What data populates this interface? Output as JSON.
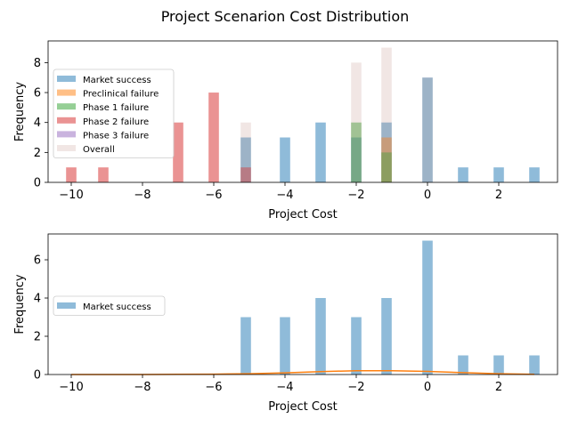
{
  "figure": {
    "title": "Project Scenarion Cost Distribution"
  },
  "chart_data": [
    {
      "type": "bar",
      "xlabel": "Project Cost",
      "ylabel": "Frequency",
      "xlim": [
        -10.65,
        3.65
      ],
      "ylim": [
        0,
        9.45
      ],
      "xticks": [
        -10,
        -8,
        -6,
        -4,
        -2,
        0,
        2
      ],
      "yticks": [
        0,
        2,
        4,
        6,
        8
      ],
      "legend": "upper-left",
      "series": [
        {
          "name": "Market success",
          "color": "#1f77b4",
          "x": [
            -5.1,
            -4.0,
            -3.0,
            -2.0,
            -1.15,
            0,
            1.0,
            2.0,
            3.0
          ],
          "values": [
            3,
            3,
            4,
            3,
            4,
            7,
            1,
            1,
            1
          ]
        },
        {
          "name": "Preclinical failure",
          "color": "#ff7f0e",
          "x": [
            -1.15
          ],
          "values": [
            3
          ]
        },
        {
          "name": "Phase 1 failure",
          "color": "#2ca02c",
          "x": [
            -2.0,
            -1.15
          ],
          "values": [
            4,
            2
          ]
        },
        {
          "name": "Phase 2 failure",
          "color": "#d62728",
          "x": [
            -10.0,
            -9.1,
            -7.0,
            -6.0,
            -5.1
          ],
          "values": [
            1,
            1,
            4,
            6,
            1
          ]
        },
        {
          "name": "Phase 3 failure",
          "color": "#9467bd",
          "x": [],
          "values": []
        },
        {
          "name": "Overall",
          "color": "#c79a92",
          "x": [
            -5.1,
            -2.0,
            -1.15,
            0
          ],
          "values": [
            4,
            8,
            9,
            7
          ]
        }
      ]
    },
    {
      "type": "bar",
      "xlabel": "Project Cost",
      "ylabel": "Frequency",
      "xlim": [
        -10.65,
        3.65
      ],
      "ylim": [
        0,
        7.35
      ],
      "xticks": [
        -10,
        -8,
        -6,
        -4,
        -2,
        0,
        2
      ],
      "yticks": [
        0,
        2,
        4,
        6
      ],
      "legend": "center-left",
      "series": [
        {
          "name": "Market success",
          "color": "#1f77b4",
          "x": [
            -5.1,
            -4.0,
            -3.0,
            -2.0,
            -1.15,
            0,
            1.0,
            2.0,
            3.0
          ],
          "values": [
            3,
            3,
            4,
            3,
            4,
            7,
            1,
            1,
            1
          ]
        }
      ],
      "density_curve": {
        "color": "#ff7f0e",
        "x": [
          -10,
          -9,
          -8,
          -7,
          -6,
          -5,
          -4,
          -3,
          -2,
          -1,
          0,
          1,
          2,
          3
        ],
        "y": [
          0.0,
          0.0,
          0.0,
          0.01,
          0.02,
          0.04,
          0.09,
          0.15,
          0.2,
          0.2,
          0.16,
          0.1,
          0.04,
          0.01
        ]
      }
    }
  ]
}
